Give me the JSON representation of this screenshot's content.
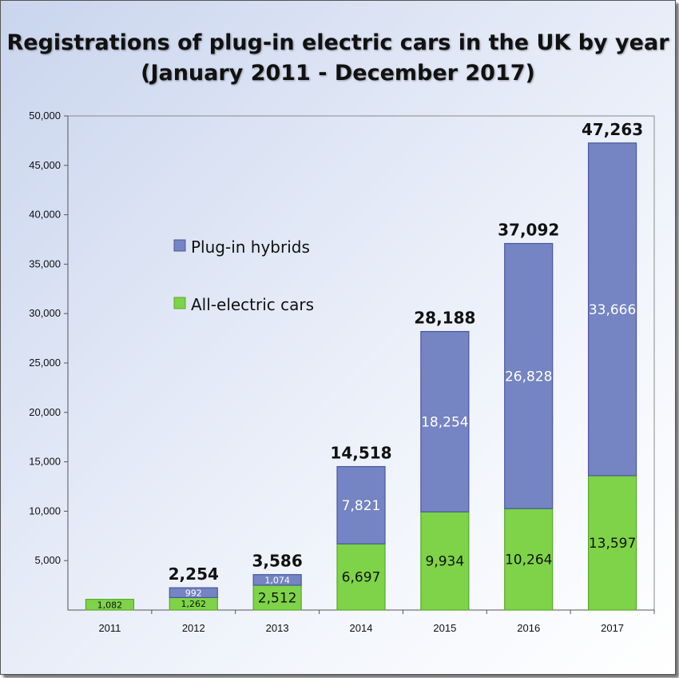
{
  "chart_data": {
    "type": "bar",
    "stacked": true,
    "title": "Registrations of plug-in electric cars in the UK by year",
    "subtitle": "(January 2011 - December 2017)",
    "categories": [
      "2011",
      "2012",
      "2013",
      "2014",
      "2015",
      "2016",
      "2017"
    ],
    "series": [
      {
        "name": "All-electric cars",
        "color": "#7ed348",
        "values": [
          1082,
          1262,
          2512,
          6697,
          9934,
          10264,
          13597
        ],
        "labels": [
          "1,082",
          "1,262",
          "2,512",
          "6,697",
          "9,934",
          "10,264",
          "13,597"
        ]
      },
      {
        "name": "Plug-in hybrids",
        "color": "#7584c2",
        "values": [
          0,
          992,
          1074,
          7821,
          18254,
          26828,
          33666
        ],
        "labels": [
          "",
          "992",
          "1,074",
          "7,821",
          "18,254",
          "26,828",
          "33,666"
        ]
      }
    ],
    "totals": [
      "",
      "2,254",
      "3,586",
      "14,518",
      "28,188",
      "37,092",
      "47,263"
    ],
    "ylim": [
      0,
      50000
    ],
    "yticks": [
      5000,
      10000,
      15000,
      20000,
      25000,
      30000,
      35000,
      40000,
      45000,
      50000
    ],
    "ytick_labels": [
      "5,000",
      "10,000",
      "15,000",
      "20,000",
      "25,000",
      "30,000",
      "35,000",
      "40,000",
      "45,000",
      "50,000"
    ],
    "legend_position": "upper-left inside plot",
    "grid": false
  }
}
